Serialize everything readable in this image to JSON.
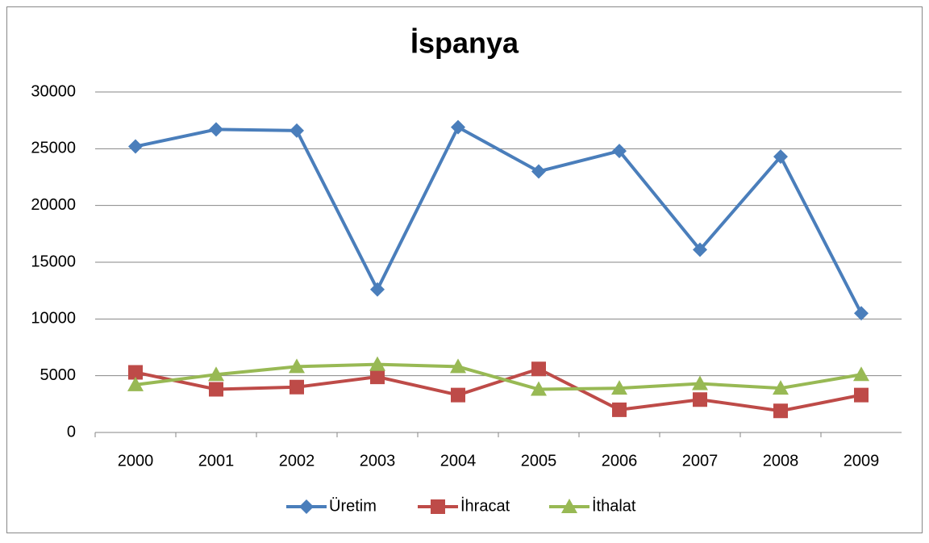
{
  "chart_data": {
    "type": "line",
    "title": "İspanya",
    "categories": [
      "2000",
      "2001",
      "2002",
      "2003",
      "2004",
      "2005",
      "2006",
      "2007",
      "2008",
      "2009"
    ],
    "series": [
      {
        "name": "Üretim",
        "color": "#4a7ebb",
        "marker": "diamond",
        "values": [
          25200,
          26700,
          26600,
          12600,
          26900,
          23000,
          24800,
          16100,
          24300,
          10500
        ]
      },
      {
        "name": "İhracat",
        "color": "#be4b48",
        "marker": "square",
        "values": [
          5300,
          3800,
          4000,
          4900,
          3300,
          5600,
          2000,
          2900,
          1900,
          3300
        ]
      },
      {
        "name": "İthalat",
        "color": "#98b954",
        "marker": "triangle",
        "values": [
          4200,
          5100,
          5800,
          6000,
          5800,
          3800,
          3900,
          4300,
          3900,
          5100
        ]
      }
    ],
    "ylim": [
      0,
      30000
    ],
    "yticks": [
      0,
      5000,
      10000,
      15000,
      20000,
      25000,
      30000
    ],
    "grid": true,
    "legend": "bottom"
  }
}
